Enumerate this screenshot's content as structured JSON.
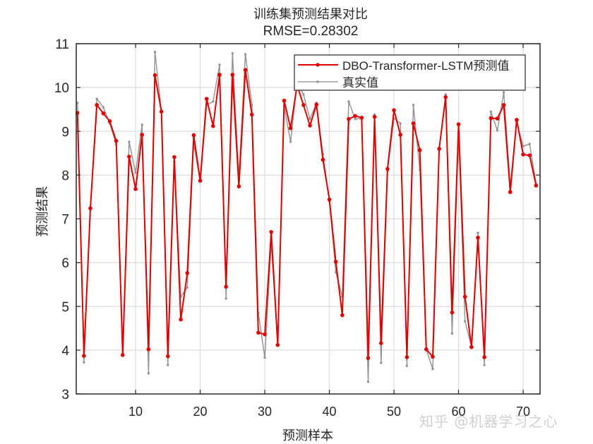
{
  "chart_data": {
    "type": "line",
    "title": "训练集预测结果对比",
    "subtitle": "RMSE=0.28302",
    "xlabel": "预测样本",
    "ylabel": "预测结果",
    "xlim": [
      1,
      72
    ],
    "ylim": [
      3,
      11
    ],
    "xticks": [
      10,
      20,
      30,
      40,
      50,
      60,
      70
    ],
    "yticks": [
      3,
      4,
      5,
      6,
      7,
      8,
      9,
      10,
      11
    ],
    "grid": true,
    "legend_position": "upper-right",
    "x": [
      1,
      2,
      3,
      4,
      5,
      6,
      7,
      8,
      9,
      10,
      11,
      12,
      13,
      14,
      15,
      16,
      17,
      18,
      19,
      20,
      21,
      22,
      23,
      24,
      25,
      26,
      27,
      28,
      29,
      30,
      31,
      32,
      33,
      34,
      35,
      36,
      37,
      38,
      39,
      40,
      41,
      42,
      43,
      44,
      45,
      46,
      47,
      48,
      49,
      50,
      51,
      52,
      53,
      54,
      55,
      56,
      57,
      58,
      59,
      60,
      61,
      62,
      63,
      64,
      65,
      66,
      67,
      68,
      69,
      70,
      71,
      72
    ],
    "series": [
      {
        "name": "DBO-Transformer-LSTM预测值",
        "color": "#e00000",
        "marker": "circle",
        "values": [
          9.42,
          3.87,
          7.24,
          9.6,
          9.41,
          9.23,
          8.78,
          3.89,
          8.42,
          7.68,
          8.92,
          4.02,
          10.28,
          9.45,
          3.86,
          8.41,
          4.7,
          5.76,
          8.91,
          7.87,
          9.74,
          9.12,
          10.29,
          5.45,
          10.29,
          7.74,
          10.4,
          9.38,
          4.4,
          4.36,
          6.7,
          4.12,
          9.7,
          9.07,
          10.05,
          9.6,
          9.13,
          9.61,
          8.35,
          7.44,
          6.02,
          4.8,
          9.28,
          9.35,
          9.31,
          3.82,
          9.33,
          4.16,
          8.14,
          9.48,
          8.92,
          3.84,
          9.18,
          8.57,
          4.02,
          3.85,
          8.6,
          9.78,
          4.86,
          9.16,
          5.22,
          4.07,
          6.57,
          3.84,
          9.3,
          9.29,
          9.6,
          7.61,
          9.26,
          8.47,
          8.45,
          7.76
        ]
      },
      {
        "name": "真实值",
        "color": "#8c8c8c",
        "marker": "square-small",
        "values": [
          9.65,
          3.72,
          7.25,
          9.74,
          9.55,
          9.18,
          8.7,
          3.89,
          8.76,
          8.05,
          9.15,
          3.47,
          10.81,
          9.45,
          3.66,
          8.3,
          5.22,
          5.43,
          8.72,
          7.85,
          9.6,
          9.68,
          10.52,
          5.18,
          10.78,
          7.96,
          10.76,
          9.6,
          4.85,
          3.83,
          6.44,
          4.12,
          9.57,
          8.76,
          10.12,
          9.84,
          9.28,
          9.65,
          8.48,
          7.4,
          5.78,
          5.22,
          9.68,
          9.28,
          9.29,
          3.28,
          9.38,
          3.71,
          8.1,
          9.29,
          9.18,
          3.64,
          9.6,
          8.12,
          4.02,
          3.57,
          8.6,
          9.84,
          4.38,
          8.97,
          4.66,
          4.08,
          6.68,
          3.66,
          9.45,
          9.02,
          9.89,
          7.76,
          9.2,
          8.66,
          8.71,
          7.8
        ]
      }
    ]
  },
  "legend": {
    "items": [
      {
        "label": "DBO-Transformer-LSTM预测值"
      },
      {
        "label": "真实值"
      }
    ]
  },
  "watermark": "知乎 @机器学习之心"
}
